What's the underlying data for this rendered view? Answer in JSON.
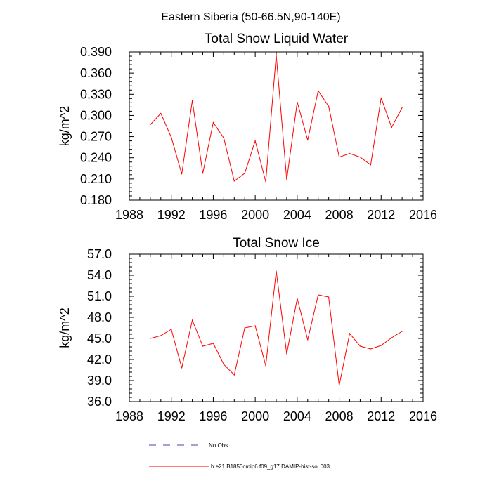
{
  "main_title": "Eastern Siberia (50-66.5N,90-140E)",
  "chart_data": [
    {
      "type": "line",
      "title": "Total Snow Liquid Water",
      "xlabel": "",
      "ylabel": "kg/m^2",
      "xlim": [
        1988,
        2016
      ],
      "ylim": [
        0.18,
        0.39
      ],
      "xticks": [
        1988,
        1992,
        1996,
        2000,
        2004,
        2008,
        2012,
        2016
      ],
      "xtick_labels": [
        "1988",
        "1992",
        "1996",
        "2000",
        "2004",
        "2008",
        "2012",
        "2016"
      ],
      "yticks": [
        0.18,
        0.21,
        0.24,
        0.27,
        0.3,
        0.33,
        0.36,
        0.39
      ],
      "ytick_labels": [
        "0.180",
        "0.210",
        "0.240",
        "0.270",
        "0.300",
        "0.330",
        "0.360",
        "0.390"
      ],
      "grid": false,
      "series": [
        {
          "name": "b.e21.B1850cmip6.f09_g17.DAMIP-hist-sol.003",
          "color": "#ff0000",
          "x": [
            1990,
            1991,
            1992,
            1993,
            1994,
            1995,
            1996,
            1997,
            1998,
            1999,
            2000,
            2001,
            2002,
            2003,
            2004,
            2005,
            2006,
            2007,
            2008,
            2009,
            2010,
            2011,
            2012,
            2013,
            2014
          ],
          "y": [
            0.287,
            0.303,
            0.269,
            0.217,
            0.321,
            0.218,
            0.29,
            0.268,
            0.207,
            0.218,
            0.264,
            0.206,
            0.386,
            0.209,
            0.319,
            0.265,
            0.335,
            0.313,
            0.241,
            0.246,
            0.241,
            0.23,
            0.325,
            0.283,
            0.311
          ]
        }
      ]
    },
    {
      "type": "line",
      "title": "Total Snow Ice",
      "xlabel": "",
      "ylabel": "kg/m^2",
      "xlim": [
        1988,
        2016
      ],
      "ylim": [
        36.0,
        57.0
      ],
      "xticks": [
        1988,
        1992,
        1996,
        2000,
        2004,
        2008,
        2012,
        2016
      ],
      "xtick_labels": [
        "1988",
        "1992",
        "1996",
        "2000",
        "2004",
        "2008",
        "2012",
        "2016"
      ],
      "yticks": [
        36.0,
        39.0,
        42.0,
        45.0,
        48.0,
        51.0,
        54.0,
        57.0
      ],
      "ytick_labels": [
        "36.0",
        "39.0",
        "42.0",
        "45.0",
        "48.0",
        "51.0",
        "54.0",
        "57.0"
      ],
      "grid": false,
      "series": [
        {
          "name": "b.e21.B1850cmip6.f09_g17.DAMIP-hist-sol.003",
          "color": "#ff0000",
          "x": [
            1990,
            1991,
            1992,
            1993,
            1994,
            1995,
            1996,
            1997,
            1998,
            1999,
            2000,
            2001,
            2002,
            2003,
            2004,
            2005,
            2006,
            2007,
            2008,
            2009,
            2010,
            2011,
            2012,
            2013,
            2014
          ],
          "y": [
            45.0,
            45.4,
            46.3,
            40.8,
            47.6,
            43.9,
            44.3,
            41.3,
            39.8,
            46.5,
            46.8,
            41.1,
            54.6,
            42.8,
            50.7,
            44.8,
            51.2,
            50.9,
            38.3,
            45.7,
            43.9,
            43.5,
            44.0,
            45.1,
            46.0
          ]
        }
      ]
    }
  ],
  "legend": {
    "items": [
      {
        "label": "No Obs",
        "color": "#4444aa",
        "style": "dashed"
      },
      {
        "label": "b.e21.B1850cmip6.f09_g17.DAMIP-hist-sol.003",
        "color": "#ff0000",
        "style": "solid"
      }
    ]
  }
}
